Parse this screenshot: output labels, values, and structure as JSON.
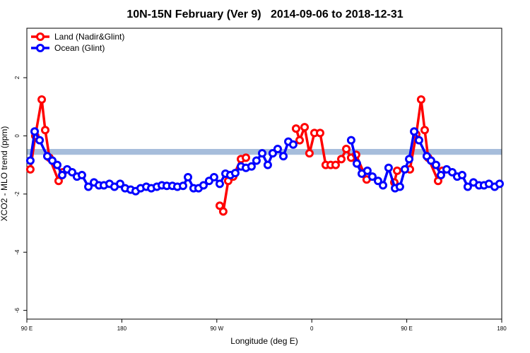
{
  "chart_data": {
    "type": "line",
    "title": "10N-15N February (Ver 9)   2014-09-06 to 2018-12-31",
    "x_label": "Longitude (deg E)",
    "y_label": "XCO2 - MLO trend (ppm)",
    "xlim": [
      90,
      540
    ],
    "xticks": [
      {
        "value": 90,
        "label": "90 E"
      },
      {
        "value": 180,
        "label": "180"
      },
      {
        "value": 270,
        "label": "90 W"
      },
      {
        "value": 360,
        "label": "0"
      },
      {
        "value": 450,
        "label": "90 E"
      },
      {
        "value": 540,
        "label": "180"
      }
    ],
    "ylim": [
      -6.3,
      3.7
    ],
    "yticks": [
      -6,
      -4,
      -2,
      0,
      2
    ],
    "reference_band": {
      "values": [
        -0.65,
        -0.45
      ],
      "color": "#a6bddb"
    },
    "legend": "top-left",
    "series": [
      {
        "name": "Land (Nadir&Glint)",
        "color": "#ff0000",
        "x": [
          93.3,
          98,
          104.1,
          107.4,
          111.4,
          120.1,
          124.1,
          null,
          272.8,
          276.1,
          280.8,
          285.5,
          292.9,
          297.6,
          null,
          345.1,
          348.5,
          353.2,
          357.8,
          362.5,
          367.9,
          373.2,
          377.9,
          382.6,
          388,
          392.7,
          397.3,
          402,
          412,
          null,
          438.2,
          440.9,
          null,
          453,
          459,
          463.6,
          467,
          470.3,
          479.7,
          483.7
        ],
        "values": [
          -1.15,
          0.0,
          1.25,
          0.2,
          -0.75,
          -1.55,
          -1.25,
          null,
          -2.4,
          -2.6,
          -1.55,
          -1.4,
          -0.8,
          -0.75,
          null,
          0.25,
          -0.15,
          0.3,
          -0.6,
          0.1,
          0.1,
          -1.0,
          -1.0,
          -1.0,
          -0.8,
          -0.45,
          -0.75,
          -0.65,
          -1.5,
          null,
          -1.6,
          -1.2,
          null,
          -1.15,
          0.05,
          1.25,
          0.2,
          -0.75,
          -1.55,
          -1.2
        ]
      },
      {
        "name": "Ocean (Glint)",
        "color": "#0000ff",
        "x": [
          93.3,
          97.4,
          102.1,
          109.4,
          114.1,
          118.8,
          123.5,
          128.2,
          132.9,
          137.5,
          142.2,
          148.3,
          153.6,
          158.3,
          163,
          168.3,
          173,
          178.4,
          183.1,
          188.4,
          193.1,
          197.8,
          203.2,
          207.9,
          213.2,
          217.9,
          222.6,
          227.9,
          232.6,
          238,
          242.7,
          248,
          252.7,
          257.4,
          262.7,
          267.4,
          272.8,
          278.2,
          282.8,
          287.5,
          292.9,
          297.6,
          302.9,
          307.6,
          313,
          318.3,
          323,
          327.7,
          333.1,
          337.8,
          342.4,
          null,
          397.3,
          402.7,
          407.4,
          412.7,
          417.4,
          422.8,
          427.5,
          432.8,
          438.9,
          443.5,
          448.2,
          452.3,
          457,
          461.6,
          469,
          473,
          477.7,
          482.4,
          487.8,
          493.1,
          497.8,
          502.5,
          507.8,
          513.2,
          518.5,
          523.2,
          527.9,
          533.3,
          538
        ],
        "values": [
          -0.85,
          0.15,
          -0.15,
          -0.7,
          -0.85,
          -1.0,
          -1.35,
          -1.15,
          -1.25,
          -1.4,
          -1.35,
          -1.75,
          -1.6,
          -1.7,
          -1.7,
          -1.65,
          -1.75,
          -1.65,
          -1.8,
          -1.85,
          -1.9,
          -1.8,
          -1.75,
          -1.8,
          -1.75,
          -1.7,
          -1.72,
          -1.72,
          -1.75,
          -1.72,
          -1.42,
          -1.8,
          -1.8,
          -1.7,
          -1.55,
          -1.42,
          -1.65,
          -1.3,
          -1.35,
          -1.28,
          -1.05,
          -1.1,
          -1.05,
          -0.85,
          -0.6,
          -1.0,
          -0.6,
          -0.45,
          -0.7,
          -0.2,
          -0.3,
          null,
          -0.15,
          -0.95,
          -1.3,
          -1.2,
          -1.4,
          -1.55,
          -1.7,
          -1.1,
          -1.8,
          -1.75,
          -1.15,
          -0.8,
          0.15,
          -0.15,
          -0.7,
          -0.85,
          -1.0,
          -1.35,
          -1.15,
          -1.25,
          -1.4,
          -1.35,
          -1.75,
          -1.6,
          -1.7,
          -1.7,
          -1.65,
          -1.75,
          -1.65
        ]
      }
    ]
  }
}
